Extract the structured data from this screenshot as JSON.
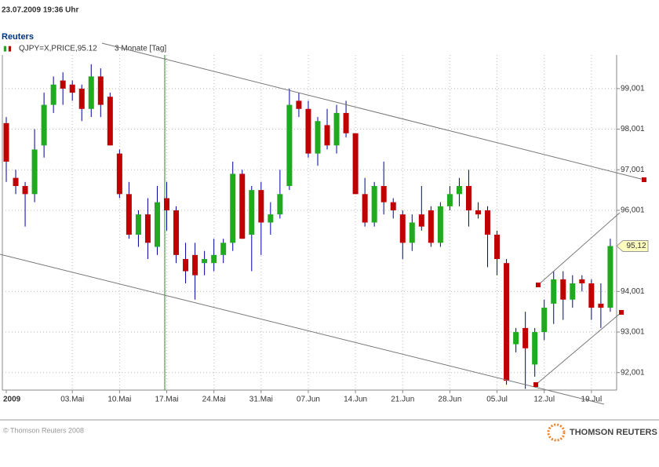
{
  "header": {
    "timestamp": "23.07.2009 19:36 Uhr",
    "source": "Reuters"
  },
  "chart_data": {
    "type": "candlestick",
    "series_name": "QJPY=X,PRICE,95.12",
    "period": "3 Monate [Tag]",
    "categories": [
      "2009",
      null,
      null,
      null,
      null,
      null,
      null,
      "03.Mai",
      null,
      null,
      null,
      null,
      "10.Mai",
      null,
      null,
      null,
      null,
      "17.Mai",
      null,
      null,
      null,
      null,
      "24.Mai",
      null,
      null,
      null,
      null,
      "31.Mai",
      null,
      null,
      null,
      null,
      "07.Jun",
      null,
      null,
      null,
      null,
      "14.Jun",
      null,
      null,
      null,
      null,
      "21.Jun",
      null,
      null,
      null,
      null,
      "28.Jun",
      null,
      null,
      null,
      null,
      "05.Jul",
      null,
      null,
      null,
      null,
      "12.Jul",
      null,
      null,
      null,
      null,
      "19.Jul",
      null,
      null
    ],
    "open": [
      98.15,
      96.8,
      96.6,
      96.4,
      97.6,
      98.6,
      99.2,
      99.1,
      99.0,
      98.5,
      99.3,
      98.8,
      97.4,
      96.4,
      95.4,
      95.9,
      95.1,
      96.3,
      96.0,
      94.8,
      94.9,
      94.7,
      94.7,
      94.9,
      95.2,
      96.9,
      95.4,
      96.5,
      95.7,
      95.9,
      96.6,
      98.7,
      98.5,
      97.4,
      98.1,
      97.6,
      98.4,
      97.9,
      96.4,
      95.7,
      96.6,
      96.2,
      95.9,
      95.2,
      95.9,
      96.0,
      95.2,
      96.1,
      96.4,
      96.6,
      96.0,
      96.0,
      95.4,
      94.7,
      92.7,
      93.1,
      92.2,
      93.0,
      93.7,
      94.3,
      93.8,
      94.3,
      94.2,
      93.7,
      93.6
    ],
    "high": [
      98.3,
      97.0,
      96.7,
      98.0,
      98.9,
      99.3,
      99.4,
      99.2,
      99.1,
      99.6,
      99.5,
      98.9,
      97.5,
      96.7,
      96.0,
      96.3,
      96.6,
      96.7,
      96.1,
      95.2,
      95.2,
      95.0,
      95.3,
      95.3,
      97.2,
      97.0,
      96.6,
      96.7,
      96.2,
      97.0,
      99.0,
      98.9,
      98.7,
      98.3,
      98.5,
      98.6,
      98.7,
      97.9,
      96.8,
      96.7,
      97.2,
      96.3,
      96.0,
      95.9,
      96.6,
      96.1,
      96.2,
      96.6,
      96.8,
      97.0,
      96.2,
      96.1,
      95.5,
      94.8,
      93.1,
      93.5,
      93.1,
      93.8,
      94.5,
      94.5,
      94.4,
      94.4,
      94.3,
      94.2,
      95.3
    ],
    "low": [
      96.7,
      96.4,
      95.6,
      96.2,
      97.3,
      98.4,
      98.6,
      98.7,
      98.2,
      98.3,
      98.3,
      97.6,
      96.3,
      95.3,
      95.1,
      94.8,
      94.9,
      95.5,
      94.7,
      94.2,
      93.8,
      94.4,
      94.5,
      94.7,
      95.0,
      95.3,
      94.5,
      94.9,
      95.4,
      95.8,
      96.5,
      98.3,
      97.3,
      97.1,
      97.5,
      97.4,
      97.8,
      96.4,
      95.6,
      95.6,
      95.9,
      95.8,
      94.8,
      95.0,
      95.5,
      95.1,
      95.1,
      96.0,
      96.1,
      95.6,
      95.8,
      94.6,
      94.4,
      91.7,
      92.5,
      91.6,
      91.9,
      92.8,
      93.2,
      93.3,
      93.6,
      94.0,
      93.3,
      93.1,
      93.5
    ],
    "close": [
      97.2,
      96.6,
      96.4,
      97.5,
      98.6,
      99.1,
      99.0,
      98.9,
      98.5,
      99.3,
      98.6,
      97.6,
      96.4,
      95.4,
      95.9,
      95.2,
      96.2,
      96.0,
      94.9,
      94.5,
      94.4,
      94.8,
      94.9,
      95.2,
      96.9,
      95.3,
      96.5,
      95.7,
      95.9,
      96.4,
      98.6,
      98.5,
      97.4,
      98.2,
      97.6,
      98.4,
      97.9,
      96.4,
      95.7,
      96.6,
      96.2,
      96.0,
      95.2,
      95.7,
      95.6,
      95.2,
      96.1,
      96.4,
      96.6,
      96.0,
      95.9,
      95.4,
      94.8,
      91.8,
      93.0,
      92.6,
      93.0,
      93.6,
      94.3,
      93.8,
      94.2,
      94.2,
      93.6,
      93.6,
      95.12
    ],
    "up_color": "#1faa1f",
    "down_color": "#c00000",
    "wick_color": "#00009c",
    "ylim": [
      91.57,
      99.83
    ],
    "yticks": [
      {
        "value": 92.001,
        "label": "92,001"
      },
      {
        "value": 93.001,
        "label": "93,001"
      },
      {
        "value": 94.001,
        "label": "94,001"
      },
      {
        "value": 96.001,
        "label": "96,001"
      },
      {
        "value": 97.001,
        "label": "97,001"
      },
      {
        "value": 98.001,
        "label": "98,001"
      },
      {
        "value": 99.001,
        "label": "99,001"
      }
    ],
    "price_label": {
      "value": 95.12,
      "label": "95,12"
    },
    "grid": true
  },
  "footer": {
    "copyright": "© Thomson Reuters 2008",
    "brand": "THOMSON REUTERS"
  }
}
